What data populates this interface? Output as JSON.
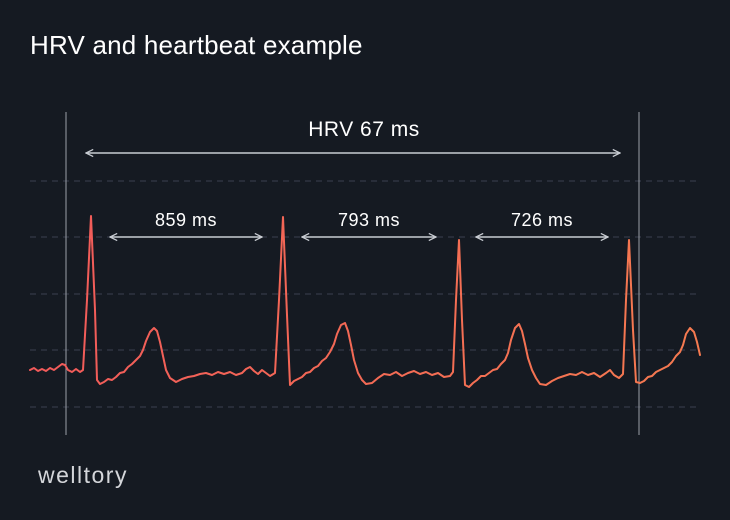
{
  "title": "HRV and heartbeat example",
  "logo": "welltory",
  "hrv_label": "HRV 67 ms",
  "intervals": [
    {
      "label": "859 ms",
      "value_ms": 859
    },
    {
      "label": "793 ms",
      "value_ms": 793
    },
    {
      "label": "726 ms",
      "value_ms": 726
    }
  ],
  "colors": {
    "background": "#151a22",
    "ecg_start": "#f25a5a",
    "ecg_end": "#f57a50",
    "text": "#ffffff",
    "lines": "#c8ccd2",
    "grid": "#3a4050"
  }
}
